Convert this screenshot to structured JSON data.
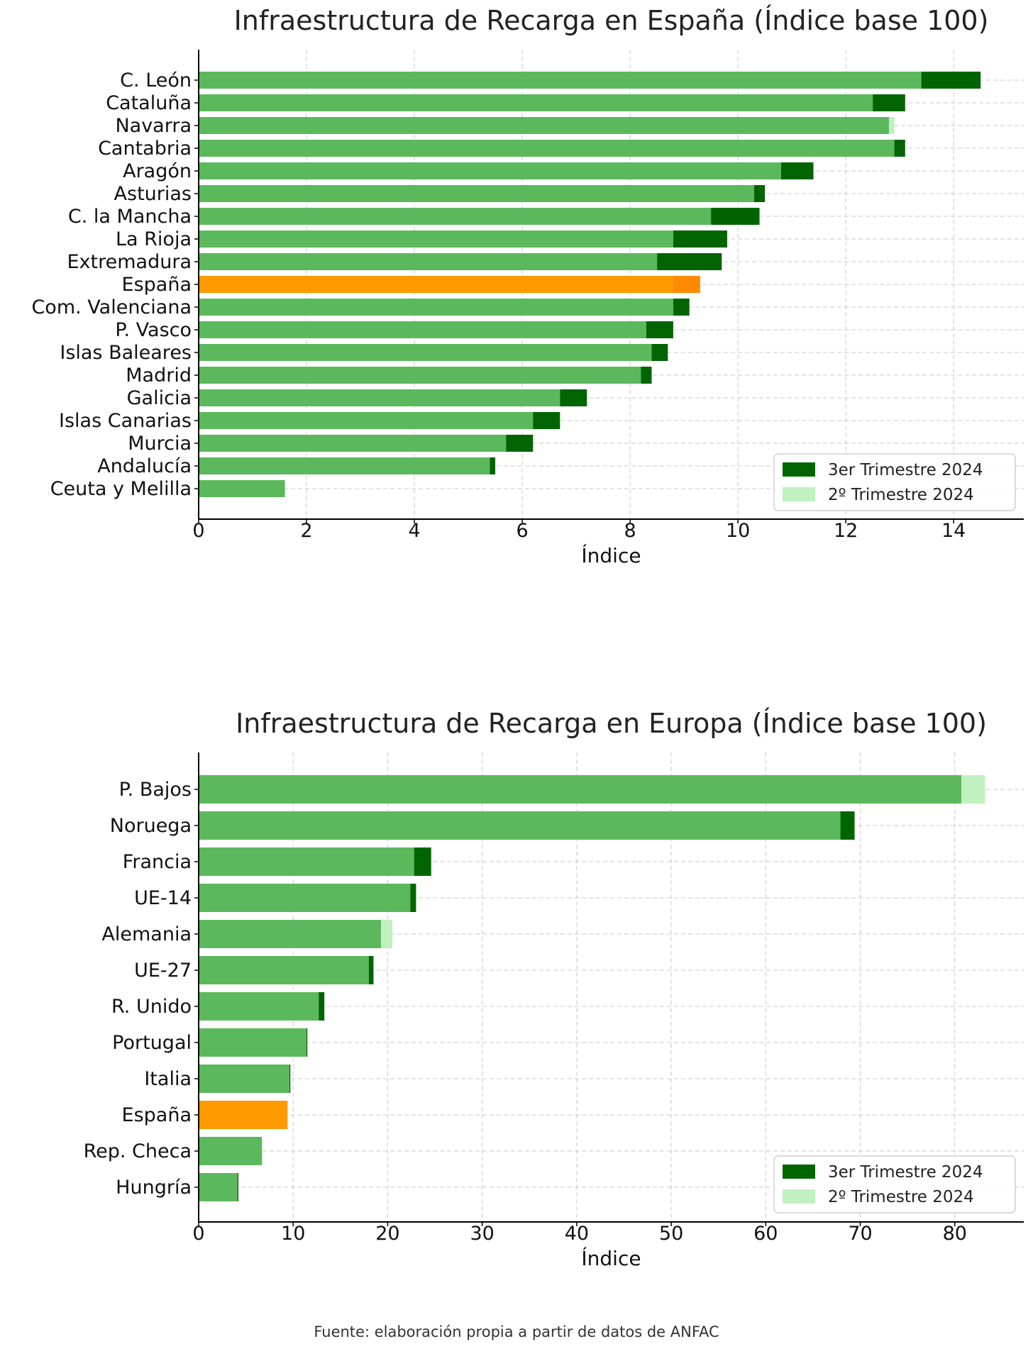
{
  "charts": [
    {
      "type": "bar",
      "orientation": "horizontal",
      "title": "Infraestructura de Recarga en España (Índice base 100)",
      "xlabel": "Índice",
      "ylabel": "",
      "xlim": [
        0,
        15.3
      ],
      "xticks": [
        0,
        2,
        4,
        6,
        8,
        10,
        12,
        14
      ],
      "grid": true,
      "legend": {
        "position": "bottom-right",
        "entries": [
          "3er Trimestre 2024",
          "2º Trimestre 2024"
        ]
      },
      "highlight": "España",
      "categories": [
        "C. León",
        "Cataluña",
        "Navarra",
        "Cantabria",
        "Aragón",
        "Asturias",
        "C. la Mancha",
        "La Rioja",
        "Extremadura",
        "España",
        "Com. Valenciana",
        "P. Vasco",
        "Islas Baleares",
        "Madrid",
        "Galicia",
        "Islas Canarias",
        "Murcia",
        "Andalucía",
        "Ceuta y Melilla"
      ],
      "series": [
        {
          "name": "3er Trimestre 2024",
          "values": [
            14.5,
            13.1,
            12.8,
            13.1,
            11.4,
            10.5,
            10.4,
            9.8,
            9.7,
            9.3,
            9.1,
            8.8,
            8.7,
            8.4,
            7.2,
            6.7,
            6.2,
            5.5,
            1.6
          ]
        },
        {
          "name": "2º Trimestre 2024",
          "values": [
            13.4,
            12.5,
            12.9,
            12.9,
            10.8,
            10.3,
            9.5,
            8.8,
            8.5,
            8.8,
            8.8,
            8.3,
            8.4,
            8.2,
            6.7,
            6.2,
            5.7,
            5.4,
            1.6
          ]
        }
      ]
    },
    {
      "type": "bar",
      "orientation": "horizontal",
      "title": "Infraestructura de Recarga en Europa (Índice base 100)",
      "xlabel": "Índice",
      "ylabel": "",
      "xlim": [
        0,
        87.3
      ],
      "xticks": [
        0,
        10,
        20,
        30,
        40,
        50,
        60,
        70,
        80
      ],
      "grid": true,
      "legend": {
        "position": "bottom-right",
        "entries": [
          "3er Trimestre 2024",
          "2º Trimestre 2024"
        ]
      },
      "highlight": "España",
      "categories": [
        "P. Bajos",
        "Noruega",
        "Francia",
        "UE-14",
        "Alemania",
        "UE-27",
        "R. Unido",
        "Portugal",
        "Italia",
        "España",
        "Rep. Checa",
        "Hungría"
      ],
      "series": [
        {
          "name": "3er Trimestre 2024",
          "values": [
            80.7,
            69.4,
            24.6,
            23.0,
            19.3,
            18.5,
            13.3,
            11.5,
            9.7,
            9.4,
            6.7,
            4.2
          ]
        },
        {
          "name": "2º Trimestre 2024",
          "values": [
            83.2,
            67.9,
            22.8,
            22.4,
            20.5,
            18.0,
            12.7,
            11.4,
            9.6,
            9.3,
            6.7,
            4.1
          ]
        }
      ]
    }
  ],
  "colors": {
    "base": "#5cb85c",
    "q3_increment": "#006400",
    "q2_excess": "#c1f0c1",
    "highlight": "#ff9900",
    "highlight_excess": "#ff8a00",
    "grid": "#c8c8c8",
    "axis": "#000000"
  },
  "source": "Fuente: elaboración propia a partir de datos de ANFAC"
}
